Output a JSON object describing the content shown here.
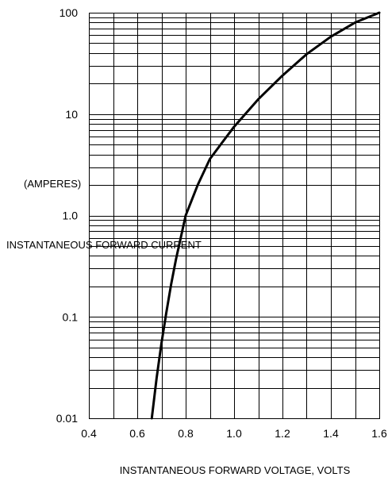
{
  "chart_data": {
    "type": "line",
    "xlabel": "INSTANTANEOUS FORWARD VOLTAGE, VOLTS",
    "ylabel_line1": "(AMPERES)",
    "ylabel_line2": "INSTANTANEOUS FORWARD CURRENT",
    "xlim": [
      0.4,
      1.6
    ],
    "ylim": [
      0.01,
      100
    ],
    "y_scale": "log",
    "grid": true,
    "x_ticks": [
      0.4,
      0.6,
      0.8,
      1.0,
      1.2,
      1.4,
      1.6
    ],
    "x_tick_labels": [
      "0.4",
      "0.6",
      "0.8",
      "1.0",
      "1.2",
      "1.4",
      "1.6"
    ],
    "y_ticks": [
      0.01,
      0.1,
      1.0,
      10,
      100
    ],
    "y_tick_labels": [
      "0.01",
      "0.1",
      "1.0",
      "10",
      "100"
    ],
    "series": [
      {
        "x": [
          0.66,
          0.68,
          0.7,
          0.72,
          0.74,
          0.76,
          0.8,
          0.85,
          0.9,
          0.95,
          1.0,
          1.1,
          1.2,
          1.3,
          1.4,
          1.5,
          1.6
        ],
        "y": [
          0.01,
          0.025,
          0.055,
          0.11,
          0.21,
          0.37,
          1.0,
          2.0,
          3.6,
          5.2,
          7.5,
          14,
          24,
          39,
          58,
          80,
          100
        ]
      }
    ]
  }
}
